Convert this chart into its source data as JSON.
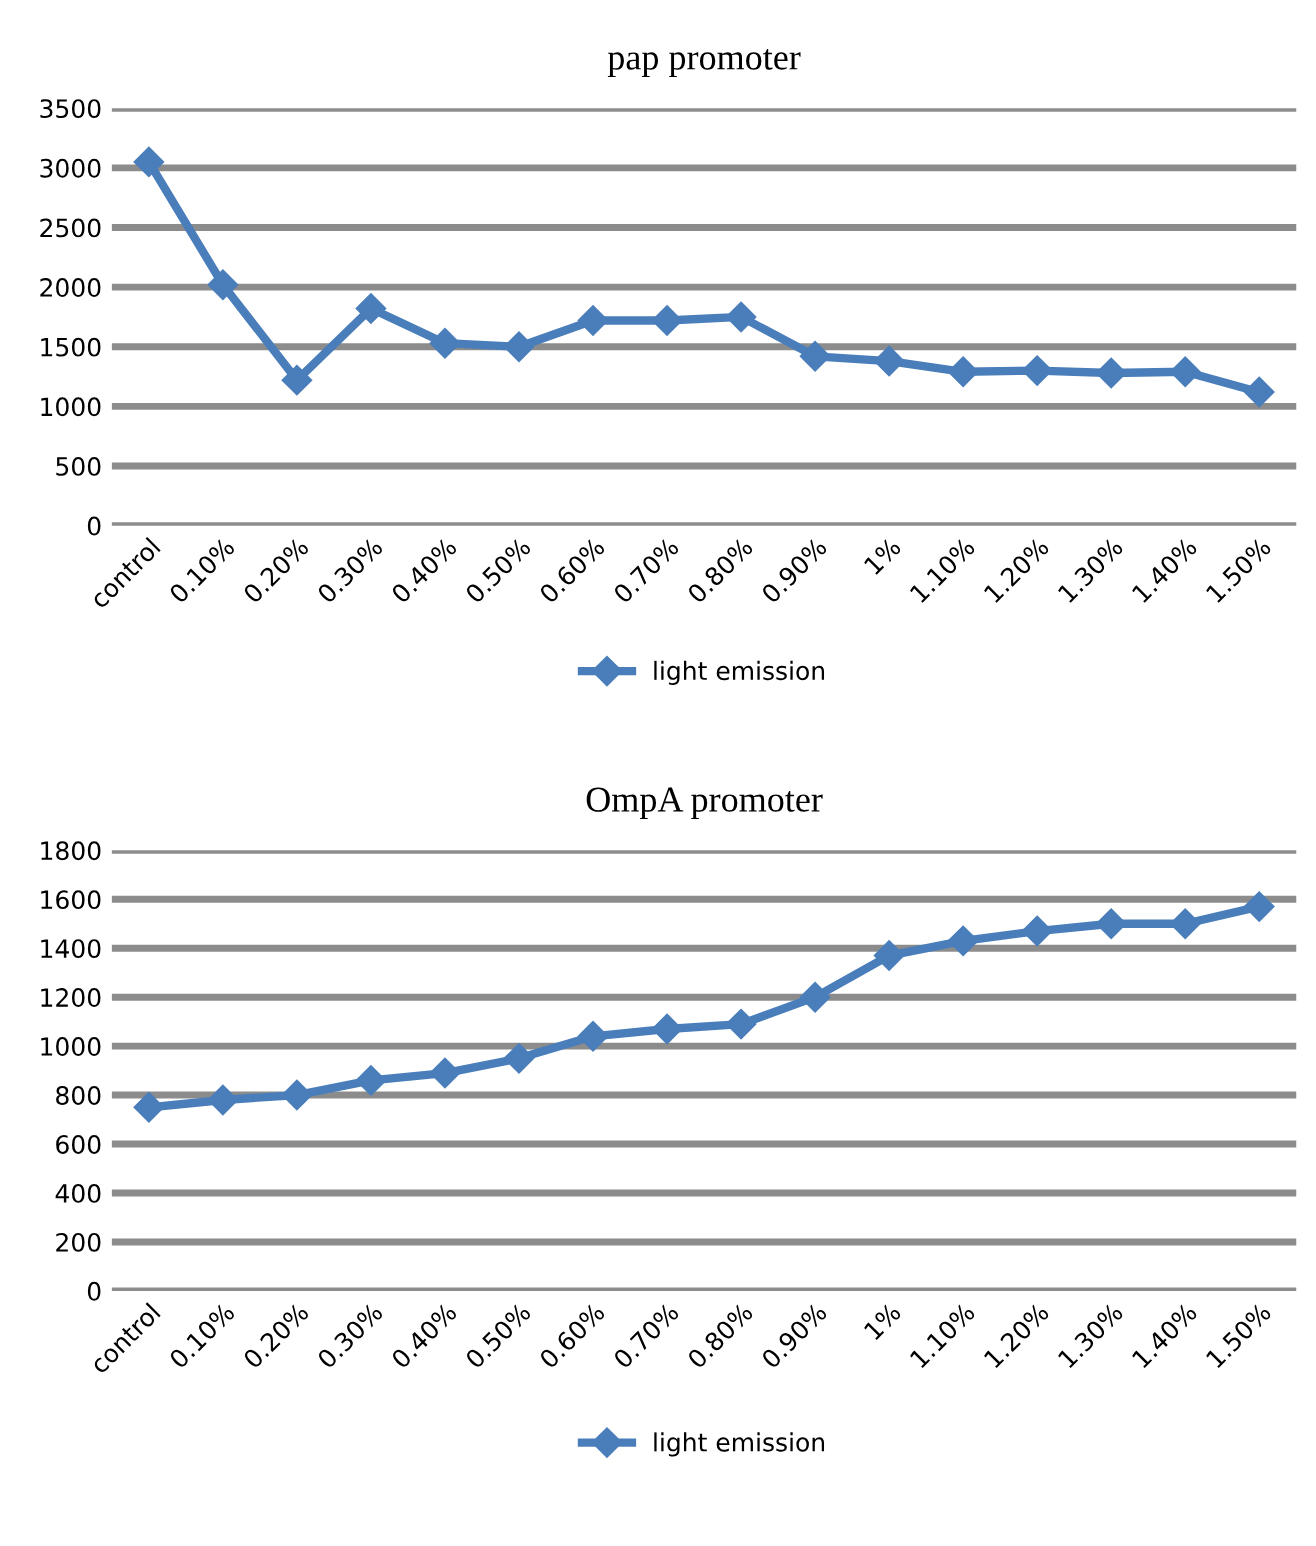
{
  "chart_data": [
    {
      "type": "line",
      "title": "pap promoter",
      "categories": [
        "control",
        "0.10%",
        "0.20%",
        "0.30%",
        "0.40%",
        "0.50%",
        "0.60%",
        "0.70%",
        "0.80%",
        "0.90%",
        "1%",
        "1.10%",
        "1.20%",
        "1.30%",
        "1.40%",
        "1.50%"
      ],
      "series": [
        {
          "name": "light emission",
          "color": "#4a7ebb",
          "values": [
            3050,
            2020,
            1220,
            1820,
            1530,
            1500,
            1720,
            1720,
            1750,
            1420,
            1380,
            1290,
            1300,
            1280,
            1290,
            1120
          ]
        }
      ],
      "ylim": [
        0,
        3500
      ],
      "yticks": [
        0,
        500,
        1000,
        1500,
        2000,
        2500,
        3000,
        3500
      ],
      "grid": "y",
      "legend": "bottom",
      "marker": "diamond",
      "line_style": "solid"
    },
    {
      "type": "line",
      "title": "OmpA promoter",
      "categories": [
        "control",
        "0.10%",
        "0.20%",
        "0.30%",
        "0.40%",
        "0.50%",
        "0.60%",
        "0.70%",
        "0.80%",
        "0.90%",
        "1%",
        "1.10%",
        "1.20%",
        "1.30%",
        "1.40%",
        "1.50%"
      ],
      "series": [
        {
          "name": "light emission",
          "color": "#4a7ebb",
          "values": [
            750,
            780,
            800,
            860,
            890,
            950,
            1040,
            1070,
            1090,
            1200,
            1370,
            1430,
            1470,
            1500,
            1500,
            1570
          ]
        }
      ],
      "ylim": [
        0,
        1800
      ],
      "yticks": [
        0,
        200,
        400,
        600,
        800,
        1000,
        1200,
        1400,
        1600,
        1800
      ],
      "grid": "y",
      "legend": "bottom",
      "marker": "diamond",
      "line_style": "solid"
    }
  ]
}
